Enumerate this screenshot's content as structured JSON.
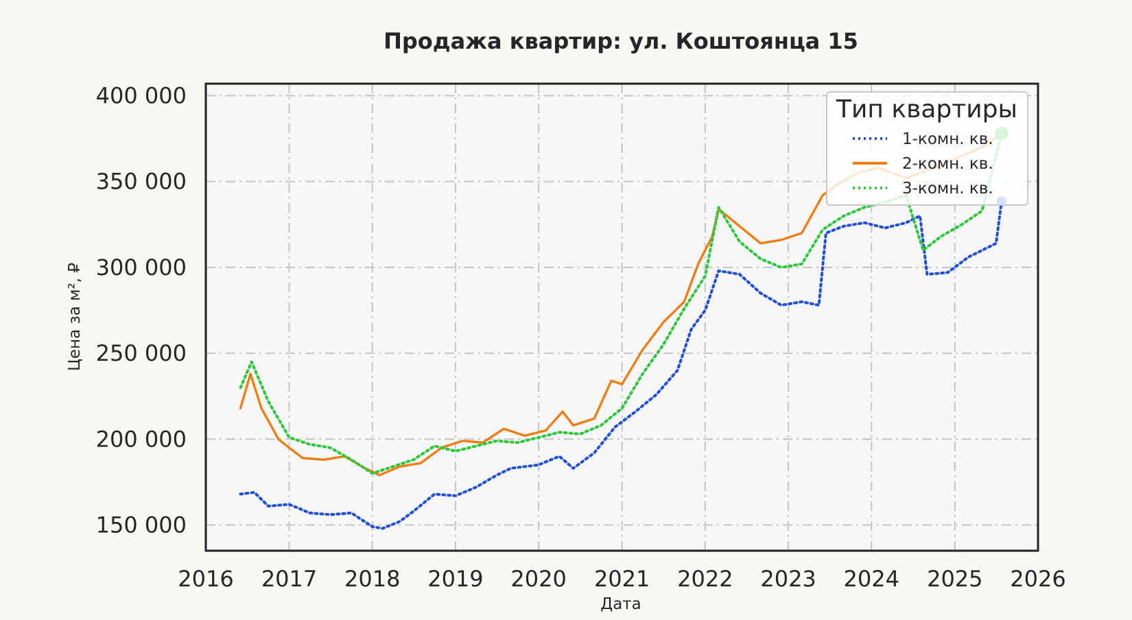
{
  "chart_data": {
    "type": "line",
    "title": "Продажа квартир: ул. Коштоянца 15",
    "xlabel": "Дата",
    "ylabel": "Цена за м², ₽",
    "xlim": [
      "2016-01-01",
      "2026-01-01"
    ],
    "ylim": [
      135000,
      407000
    ],
    "x_ticks": [
      "2016",
      "2017",
      "2018",
      "2019",
      "2020",
      "2021",
      "2022",
      "2023",
      "2024",
      "2025",
      "2026"
    ],
    "y_ticks": [
      150000,
      200000,
      250000,
      300000,
      350000,
      400000
    ],
    "y_tick_labels": [
      "150 000",
      "200 000",
      "250 000",
      "300 000",
      "350 000",
      "400 000"
    ],
    "grid": true,
    "legend": {
      "title": "Тип квартиры",
      "position": "top-right"
    },
    "series": [
      {
        "name": "1-комн. кв.",
        "color": "#1f4fd8",
        "style": "dotted",
        "points": [
          [
            "2016-06-01",
            168000
          ],
          [
            "2016-08-01",
            169000
          ],
          [
            "2016-10-01",
            161000
          ],
          [
            "2017-01-01",
            162000
          ],
          [
            "2017-04-01",
            157000
          ],
          [
            "2017-07-01",
            156000
          ],
          [
            "2017-10-01",
            157000
          ],
          [
            "2018-01-01",
            149000
          ],
          [
            "2018-02-15",
            148000
          ],
          [
            "2018-05-01",
            152000
          ],
          [
            "2018-07-01",
            158000
          ],
          [
            "2018-10-01",
            168000
          ],
          [
            "2019-01-01",
            167000
          ],
          [
            "2019-04-01",
            172000
          ],
          [
            "2019-07-01",
            179000
          ],
          [
            "2019-09-01",
            183000
          ],
          [
            "2020-01-01",
            185000
          ],
          [
            "2020-04-01",
            190000
          ],
          [
            "2020-06-01",
            183000
          ],
          [
            "2020-09-01",
            192000
          ],
          [
            "2020-12-01",
            207000
          ],
          [
            "2021-03-01",
            216000
          ],
          [
            "2021-06-01",
            226000
          ],
          [
            "2021-09-01",
            240000
          ],
          [
            "2021-11-01",
            264000
          ],
          [
            "2022-01-01",
            275000
          ],
          [
            "2022-03-01",
            298000
          ],
          [
            "2022-06-01",
            296000
          ],
          [
            "2022-09-01",
            285000
          ],
          [
            "2022-12-01",
            278000
          ],
          [
            "2023-03-01",
            280000
          ],
          [
            "2023-05-15",
            278000
          ],
          [
            "2023-06-15",
            320000
          ],
          [
            "2023-09-01",
            324000
          ],
          [
            "2023-12-01",
            326000
          ],
          [
            "2024-03-01",
            323000
          ],
          [
            "2024-06-01",
            326000
          ],
          [
            "2024-08-01",
            330000
          ],
          [
            "2024-09-01",
            296000
          ],
          [
            "2024-12-01",
            297000
          ],
          [
            "2025-03-01",
            306000
          ],
          [
            "2025-05-01",
            310000
          ],
          [
            "2025-07-01",
            314000
          ],
          [
            "2025-07-25",
            338476
          ]
        ]
      },
      {
        "name": "2-комн. кв.",
        "color": "#f07d12",
        "style": "solid",
        "points": [
          [
            "2016-06-01",
            218000
          ],
          [
            "2016-07-15",
            238000
          ],
          [
            "2016-09-01",
            218000
          ],
          [
            "2016-11-15",
            200000
          ],
          [
            "2017-01-01",
            195000
          ],
          [
            "2017-03-01",
            189000
          ],
          [
            "2017-06-01",
            188000
          ],
          [
            "2017-09-01",
            190000
          ],
          [
            "2017-12-01",
            183000
          ],
          [
            "2018-02-01",
            179000
          ],
          [
            "2018-05-01",
            184000
          ],
          [
            "2018-08-01",
            186000
          ],
          [
            "2018-11-01",
            195000
          ],
          [
            "2019-02-01",
            199000
          ],
          [
            "2019-05-01",
            198000
          ],
          [
            "2019-08-01",
            206000
          ],
          [
            "2019-11-01",
            202000
          ],
          [
            "2020-02-01",
            205000
          ],
          [
            "2020-04-15",
            216000
          ],
          [
            "2020-06-01",
            208000
          ],
          [
            "2020-09-01",
            212000
          ],
          [
            "2020-11-15",
            234000
          ],
          [
            "2021-01-01",
            232000
          ],
          [
            "2021-04-01",
            252000
          ],
          [
            "2021-07-01",
            268000
          ],
          [
            "2021-10-01",
            280000
          ],
          [
            "2021-12-01",
            302000
          ],
          [
            "2022-02-01",
            318000
          ],
          [
            "2022-03-01",
            334000
          ],
          [
            "2022-06-01",
            324000
          ],
          [
            "2022-09-01",
            314000
          ],
          [
            "2022-12-01",
            316000
          ],
          [
            "2023-03-01",
            320000
          ],
          [
            "2023-06-01",
            342000
          ],
          [
            "2023-08-01",
            348000
          ],
          [
            "2023-11-01",
            355000
          ],
          [
            "2024-02-01",
            358000
          ],
          [
            "2024-06-01",
            352000
          ],
          [
            "2024-10-01",
            358000
          ],
          [
            "2025-02-01",
            365000
          ],
          [
            "2025-05-01",
            370000
          ],
          [
            "2025-07-25",
            377600
          ]
        ]
      },
      {
        "name": "3-комн. кв.",
        "color": "#2cc83a",
        "style": "dotted",
        "points": [
          [
            "2016-06-01",
            230000
          ],
          [
            "2016-07-20",
            245000
          ],
          [
            "2016-10-01",
            222000
          ],
          [
            "2017-01-01",
            201000
          ],
          [
            "2017-04-01",
            197000
          ],
          [
            "2017-07-01",
            195000
          ],
          [
            "2017-10-01",
            188000
          ],
          [
            "2018-01-01",
            180000
          ],
          [
            "2018-04-01",
            184000
          ],
          [
            "2018-07-01",
            188000
          ],
          [
            "2018-10-01",
            196000
          ],
          [
            "2019-01-01",
            193000
          ],
          [
            "2019-04-01",
            196000
          ],
          [
            "2019-07-01",
            199000
          ],
          [
            "2019-10-01",
            198000
          ],
          [
            "2020-01-01",
            201000
          ],
          [
            "2020-04-01",
            204000
          ],
          [
            "2020-07-01",
            203000
          ],
          [
            "2020-10-01",
            208000
          ],
          [
            "2021-01-01",
            218000
          ],
          [
            "2021-04-01",
            238000
          ],
          [
            "2021-07-01",
            255000
          ],
          [
            "2021-10-01",
            276000
          ],
          [
            "2022-01-01",
            295000
          ],
          [
            "2022-03-01",
            335000
          ],
          [
            "2022-06-01",
            315000
          ],
          [
            "2022-09-01",
            305000
          ],
          [
            "2022-12-01",
            300000
          ],
          [
            "2023-03-01",
            302000
          ],
          [
            "2023-06-01",
            322000
          ],
          [
            "2023-09-01",
            330000
          ],
          [
            "2023-12-01",
            335000
          ],
          [
            "2024-03-01",
            338000
          ],
          [
            "2024-06-01",
            342000
          ],
          [
            "2024-08-15",
            310000
          ],
          [
            "2024-11-01",
            318000
          ],
          [
            "2025-02-01",
            325000
          ],
          [
            "2025-05-01",
            333000
          ],
          [
            "2025-07-25",
            378000
          ]
        ]
      }
    ]
  }
}
